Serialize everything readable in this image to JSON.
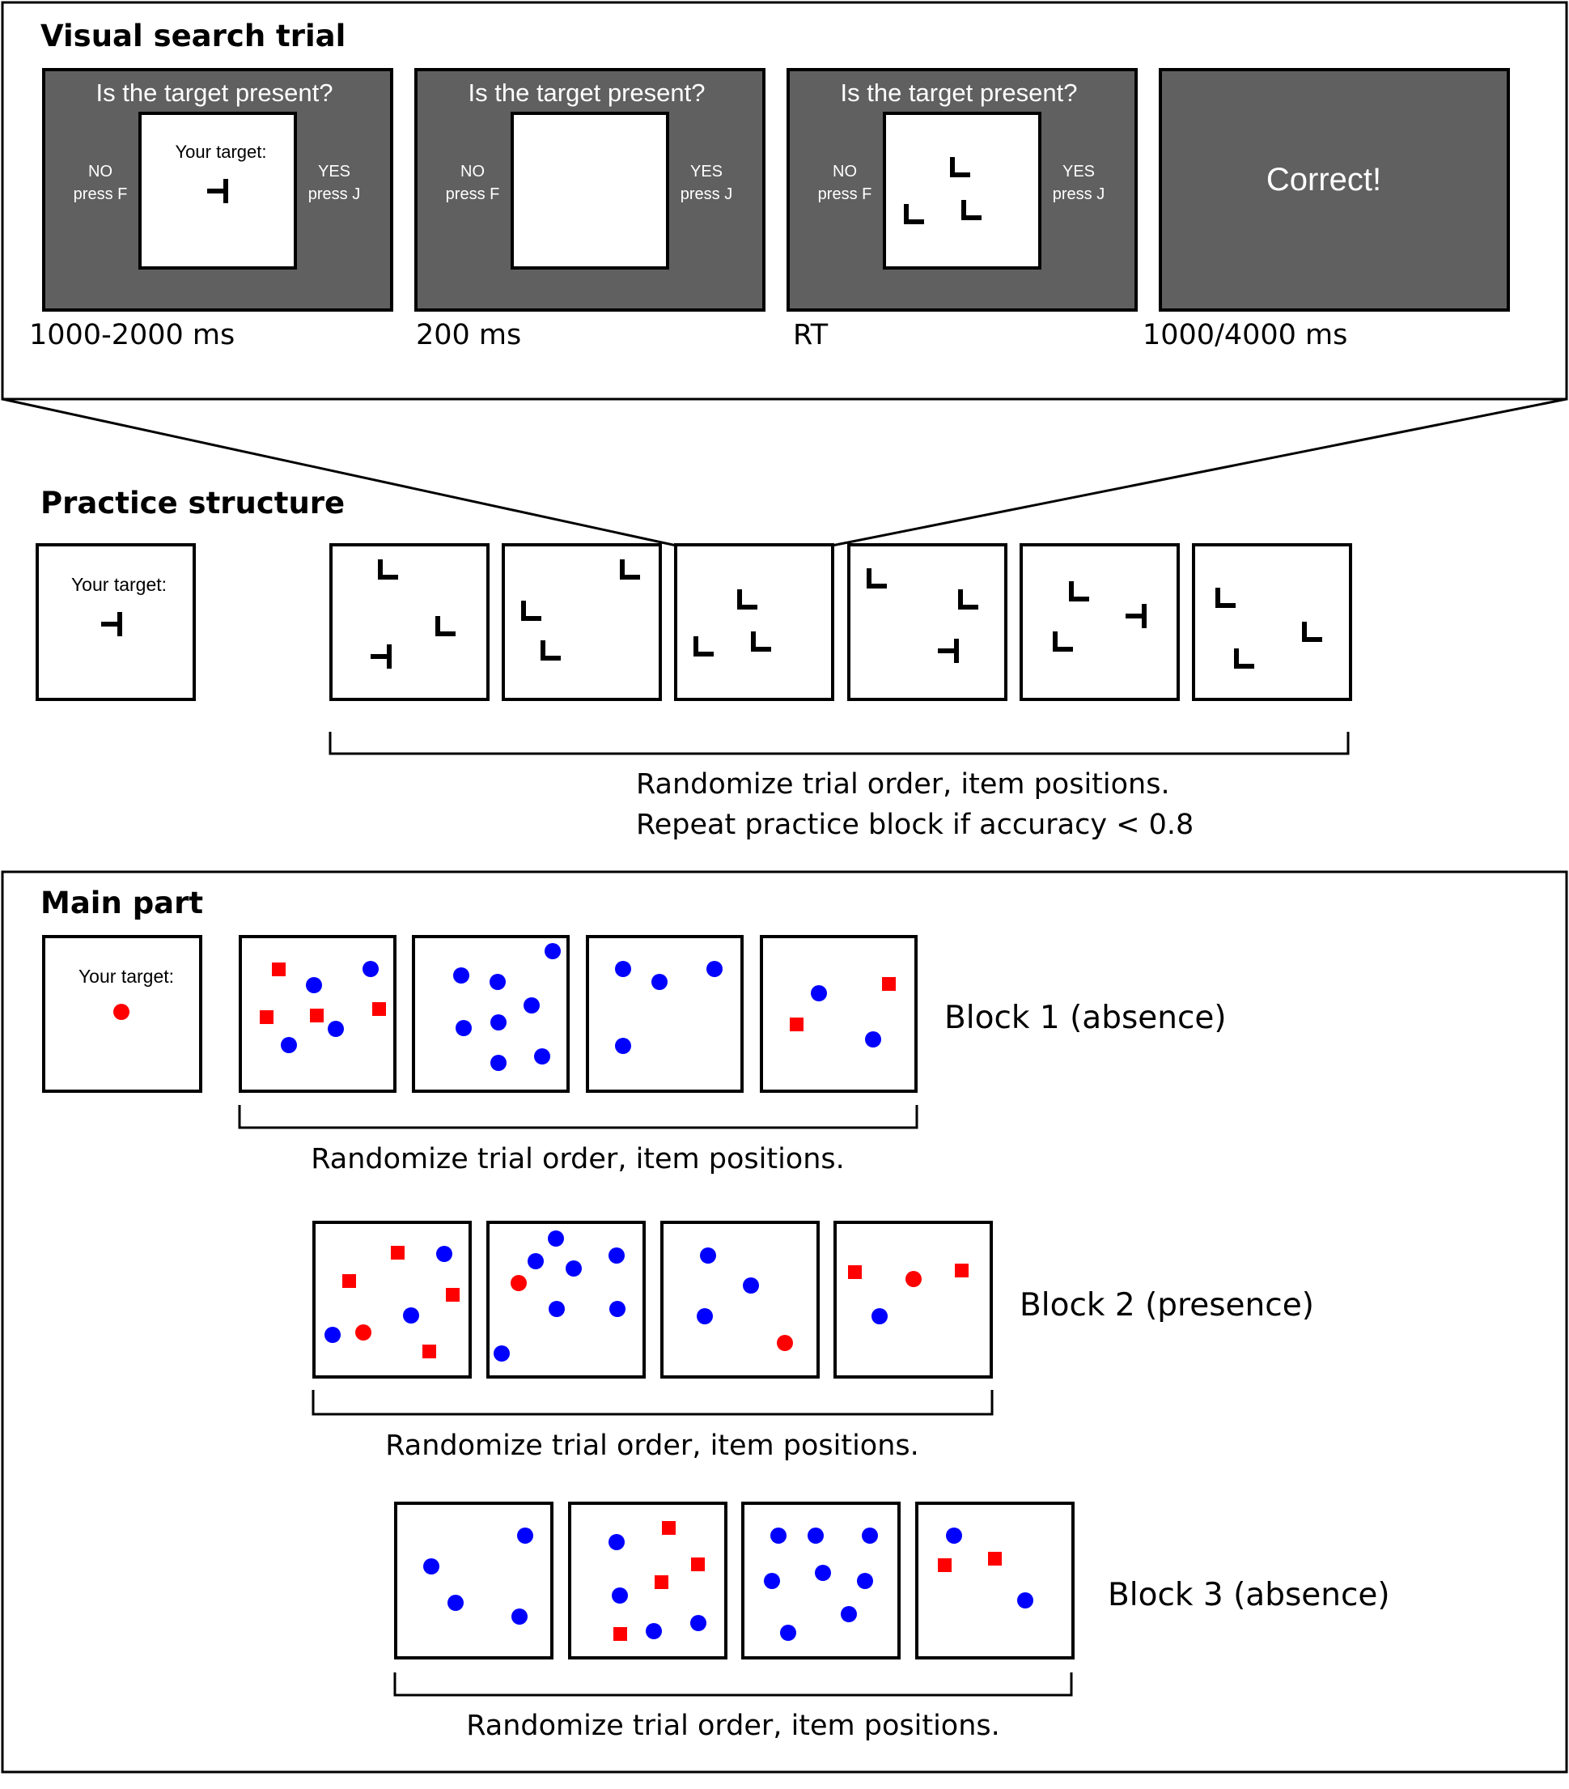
{
  "colors": {
    "screen_gray": "#606060",
    "target_red": "#ff0000",
    "distractor_blue": "#0000ff",
    "line": "#000000"
  },
  "visual_search": {
    "title": "Visual search trial",
    "question": "Is the target present?",
    "no_label": "NO",
    "no_key": "press F",
    "yes_label": "YES",
    "yes_key": "press J",
    "target_label": "Your target:",
    "feedback": "Correct!",
    "timings": [
      "1000-2000 ms",
      "200 ms",
      "RT",
      "1000/4000 ms"
    ]
  },
  "practice": {
    "title": "Practice structure",
    "target_label": "Your target:",
    "caption_line1": "Randomize trial order, item positions.",
    "caption_line2": "Repeat practice block if accuracy < 0.8"
  },
  "main": {
    "title": "Main part",
    "target_label": "Your target:",
    "blocks": [
      {
        "label": "Block 1 (absence)",
        "caption": "Randomize trial order, item positions."
      },
      {
        "label": "Block 2 (presence)",
        "caption": "Randomize trial order, item positions."
      },
      {
        "label": "Block 3 (absence)",
        "caption": "Randomize trial order, item positions."
      }
    ]
  }
}
